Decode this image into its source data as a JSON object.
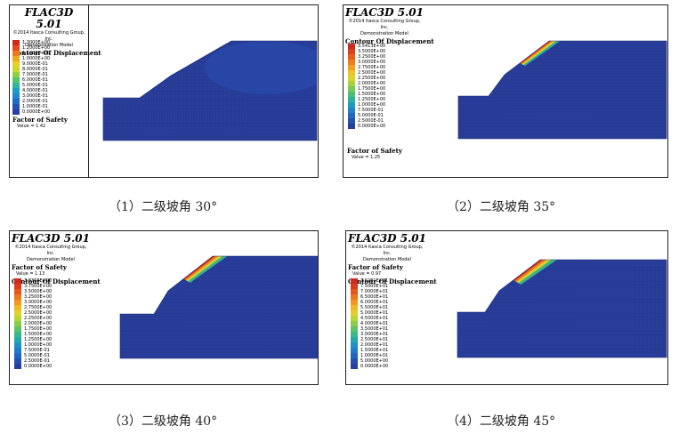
{
  "panels": [
    {
      "title": "FLAC3D 5.01",
      "copyright": "©2014 Itasca Consulting Group, Inc.",
      "model": "Demonstration Model",
      "contour_title": "Contour Of Displacement",
      "fos_title": "Factor of Safety",
      "fos_value": "Value = 1.42",
      "fos_first": false,
      "levels": [
        "1.3000E+00",
        "1.2000E+00",
        "1.1000E+00",
        "1.0000E+00",
        "9.0000E-01",
        "8.0000E-01",
        "7.0000E-01",
        "6.0000E-01",
        "5.0000E-01",
        "4.0000E-01",
        "3.0000E-01",
        "2.0000E-01",
        "1.0000E-01",
        "0.0000E+00"
      ],
      "colors": [
        "#cc2a1f",
        "#e24d1c",
        "#ee7a1b",
        "#f1a521",
        "#eccd26",
        "#c9d82f",
        "#8fd045",
        "#55c36c",
        "#2db69a",
        "#1b9fc0",
        "#1f84cc",
        "#2267c4",
        "#2451b4",
        "#2a3e9e"
      ],
      "caption": "（1）二级坡角 30°",
      "slip_depth": 0.0
    },
    {
      "title": "FLAC3D 5.01",
      "copyright": "©2014 Itasca Consulting Group, Inc.",
      "model": "Demonstration Model",
      "contour_title": "Contour Of Displacement",
      "fos_title": "Factor of Safety",
      "fos_value": "Value = 1.25",
      "fos_first": false,
      "levels": [
        "3.5413E+00",
        "3.5000E+00",
        "3.2500E+00",
        "3.0000E+00",
        "2.7500E+00",
        "2.5000E+00",
        "2.2500E+00",
        "2.0000E+00",
        "1.7500E+00",
        "1.5000E+00",
        "1.2500E+00",
        "1.0000E+00",
        "7.5000E-01",
        "5.0000E-01",
        "2.5000E-01",
        "0.0000E+00"
      ],
      "colors": [
        "#cc2a1f",
        "#dc3f1d",
        "#e85c1b",
        "#ef7d1b",
        "#f2a022",
        "#eec326",
        "#d6d62c",
        "#a9d33c",
        "#78c956",
        "#4dbd78",
        "#2fb19c",
        "#1f9bbf",
        "#1f82cc",
        "#2268c4",
        "#2452b4",
        "#2a3e9e"
      ],
      "caption": "（2）二级坡角 35°",
      "slip_depth": 1.0
    },
    {
      "title": "FLAC3D 5.01",
      "copyright": "©2014 Itasca Consulting Group, Inc.",
      "model": "Demonstration Model",
      "contour_title": "Contour Of Displacement",
      "fos_title": "Factor of Safety",
      "fos_value": "Value = 1.13",
      "fos_first": true,
      "levels": [
        "3.8368E+00",
        "3.7500E+00",
        "3.5000E+00",
        "3.2500E+00",
        "3.0000E+00",
        "2.7500E+00",
        "2.5000E+00",
        "2.2500E+00",
        "2.0000E+00",
        "1.7500E+00",
        "1.5000E+00",
        "1.2500E+00",
        "1.0000E+00",
        "7.5000E-01",
        "5.0000E-01",
        "2.5000E-01",
        "0.0000E+00"
      ],
      "colors": [
        "#cc2a1f",
        "#da3b1d",
        "#e6561b",
        "#ee761b",
        "#f29722",
        "#efb925",
        "#e0d22a",
        "#b8d636",
        "#89ce4c",
        "#5ec366",
        "#3bb888",
        "#25a8aa",
        "#1f92c6",
        "#1f7bcb",
        "#2264c1",
        "#244fb2",
        "#2a3e9e"
      ],
      "caption": "（3）二级坡角 40°",
      "slip_depth": 1.3
    },
    {
      "title": "FLAC3D 5.01",
      "copyright": "©2014 Itasca Consulting Group, Inc.",
      "model": "Demonstration Model",
      "contour_title": "Contour Of Displacement",
      "fos_title": "Factor of Safety",
      "fos_value": "Value = 0.97",
      "fos_first": true,
      "levels": [
        "7.6281E+01",
        "7.5000E+01",
        "7.0000E+01",
        "6.5000E+01",
        "6.0000E+01",
        "5.5000E+01",
        "5.0000E+01",
        "4.5000E+01",
        "4.0000E+01",
        "3.5000E+01",
        "3.0000E+01",
        "2.5000E+01",
        "2.0000E+01",
        "1.5000E+01",
        "1.0000E+01",
        "5.0000E+00",
        "0.0000E+00"
      ],
      "colors": [
        "#cc2a1f",
        "#da3b1d",
        "#e6561b",
        "#ee761b",
        "#f29722",
        "#efb925",
        "#e0d22a",
        "#b8d636",
        "#89ce4c",
        "#5ec366",
        "#3bb888",
        "#25a8aa",
        "#1f92c6",
        "#1f7bcb",
        "#2264c1",
        "#244fb2",
        "#2a3e9e"
      ],
      "caption": "（4）二级坡角 45°",
      "slip_depth": 1.5
    }
  ]
}
